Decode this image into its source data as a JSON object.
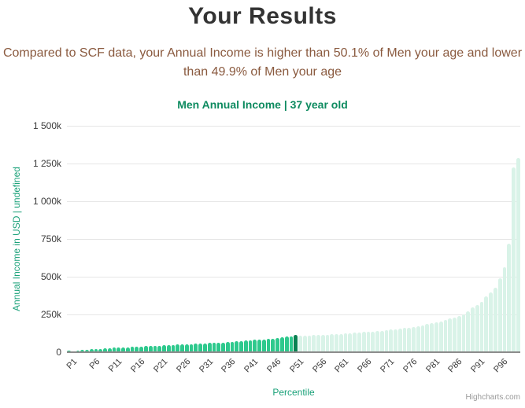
{
  "page": {
    "title": "Your Results",
    "subtitle": "Compared to SCF data, your Annual Income is higher than 50.1% of Men your age and lower than 49.9% of Men your age"
  },
  "chart": {
    "credit": "Highcharts.com"
  },
  "chart_data": {
    "type": "bar",
    "title": "Men Annual Income | 37 year old",
    "xlabel": "Percentile",
    "ylabel": "Annual Income in USD | undefined",
    "unit": "thousands of USD",
    "ylim": [
      0,
      1500
    ],
    "y_ticks": [
      0,
      250,
      500,
      750,
      1000,
      1250,
      1500
    ],
    "y_tick_labels": [
      "0",
      "250k",
      "500k",
      "750k",
      "1 000k",
      "1 250k",
      "1 500k"
    ],
    "x_tick_labels": [
      "P1",
      "P6",
      "P11",
      "P16",
      "P21",
      "P26",
      "P31",
      "P36",
      "P41",
      "P46",
      "P51",
      "P56",
      "P61",
      "P66",
      "P71",
      "P76",
      "P81",
      "P86",
      "P91",
      "P96"
    ],
    "x_tick_step": 5,
    "categories_note": "100 bars, percentiles P1 through P100",
    "values_k_usd": [
      8,
      4,
      13,
      15,
      17,
      19,
      21,
      23,
      25,
      27,
      29,
      30,
      32,
      33,
      35,
      37,
      38,
      40,
      41,
      43,
      44,
      46,
      47,
      49,
      50,
      52,
      53,
      54,
      56,
      57,
      59,
      60,
      62,
      63,
      65,
      67,
      69,
      71,
      74,
      76,
      78,
      81,
      83,
      86,
      88,
      91,
      95,
      98,
      102,
      105,
      117,
      108,
      110,
      111,
      113,
      114,
      116,
      117,
      119,
      120,
      122,
      124,
      127,
      129,
      131,
      133,
      136,
      138,
      141,
      143,
      146,
      149,
      152,
      156,
      160,
      164,
      169,
      174,
      179,
      185,
      191,
      198,
      205,
      213,
      222,
      231,
      241,
      252,
      272,
      295,
      313,
      335,
      370,
      398,
      425,
      490,
      560,
      720,
      1225,
      1285
    ],
    "highlight_index": 50,
    "regions": {
      "below_user": "P1-P50 medium green",
      "user": "P51 dark green (your position)",
      "above_user": "P52-P100 pale mint green"
    },
    "grid": "horizontal only",
    "legend": "none",
    "colors": {
      "below": "#2ec98d",
      "highlight": "#0b8152",
      "above": "#d9f3e8",
      "grid": "#e6e6e6",
      "axis-line": "#8c8c8c",
      "accent-teal": "#1aa179",
      "title-green": "#0e8b60",
      "subtitle-brown": "#8a5a3f",
      "title-dark": "#333333",
      "tick-text": "#3a3a3a",
      "credit-gray": "#999999"
    }
  }
}
